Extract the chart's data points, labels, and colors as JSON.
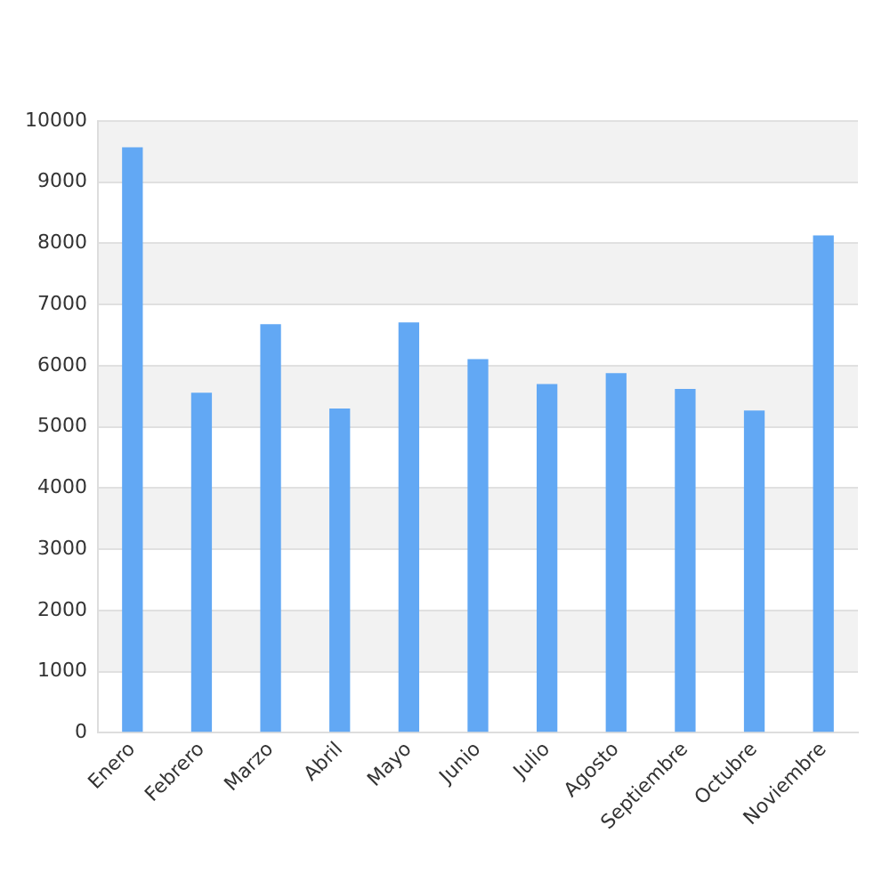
{
  "chart_data": {
    "type": "bar",
    "categories": [
      "Enero",
      "Febrero",
      "Marzo",
      "Abril",
      "Mayo",
      "Junio",
      "Julio",
      "Agosto",
      "Septiembre",
      "Octubre",
      "Noviembre"
    ],
    "values": [
      9570,
      5560,
      6680,
      5300,
      6710,
      6110,
      5700,
      5880,
      5620,
      5270,
      8130
    ],
    "color": "#62a8f4",
    "ylim": [
      0,
      10000
    ],
    "yticks": [
      0,
      1000,
      2000,
      3000,
      4000,
      5000,
      6000,
      7000,
      8000,
      9000,
      10000
    ],
    "grid": "y"
  }
}
